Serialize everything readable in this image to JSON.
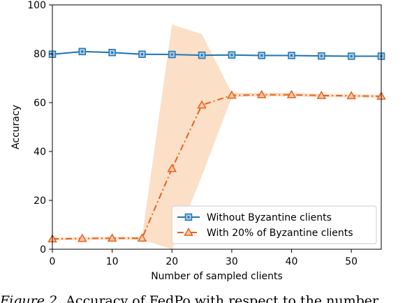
{
  "chart_data": {
    "type": "line",
    "xlabel": "Number of sampled clients",
    "ylabel": "Accuracy",
    "xlim": [
      0,
      55
    ],
    "ylim": [
      0,
      100
    ],
    "xticks": [
      0,
      10,
      20,
      30,
      40,
      50
    ],
    "yticks": [
      0,
      20,
      40,
      60,
      80,
      100
    ],
    "legend_position": "lower-right",
    "grid": false,
    "series": [
      {
        "name": "Without Byzantine clients",
        "color": "#1f77b4",
        "marker": "square",
        "linestyle": "solid",
        "x": [
          0,
          5,
          10,
          15,
          20,
          25,
          30,
          35,
          40,
          45,
          50,
          55
        ],
        "y": [
          79.8,
          80.9,
          80.5,
          79.8,
          79.7,
          79.4,
          79.5,
          79.3,
          79.3,
          79.1,
          79.0,
          79.0
        ],
        "band_lower": [
          79.5,
          80.6,
          80.2,
          79.5,
          79.4,
          79.1,
          79.2,
          79.0,
          79.0,
          78.8,
          78.7,
          78.7
        ],
        "band_upper": [
          80.1,
          81.2,
          80.8,
          80.1,
          80.0,
          79.7,
          79.8,
          79.6,
          79.6,
          79.4,
          79.3,
          79.3
        ]
      },
      {
        "name": "With 20% of Byzantine clients",
        "color": "#e8601c",
        "band_color": "#fbd9bd",
        "marker": "triangle",
        "linestyle": "dashdot",
        "x": [
          0,
          5,
          10,
          15,
          20,
          25,
          30,
          35,
          40,
          45,
          50,
          55
        ],
        "y": [
          4.2,
          4.4,
          4.5,
          4.5,
          33.0,
          59.0,
          63.0,
          63.2,
          63.2,
          62.9,
          62.8,
          62.6
        ],
        "band_lower": [
          3.6,
          3.8,
          3.9,
          3.9,
          0.0,
          30.0,
          62.2,
          62.5,
          62.5,
          62.2,
          62.1,
          61.9
        ],
        "band_upper": [
          4.8,
          5.0,
          5.1,
          5.1,
          92.0,
          88.0,
          64.0,
          64.0,
          64.0,
          63.6,
          63.4,
          63.2
        ]
      }
    ]
  },
  "caption": {
    "figure_label": "Figure 2.",
    "text": "Accuracy of FedPo with respect to the number"
  }
}
